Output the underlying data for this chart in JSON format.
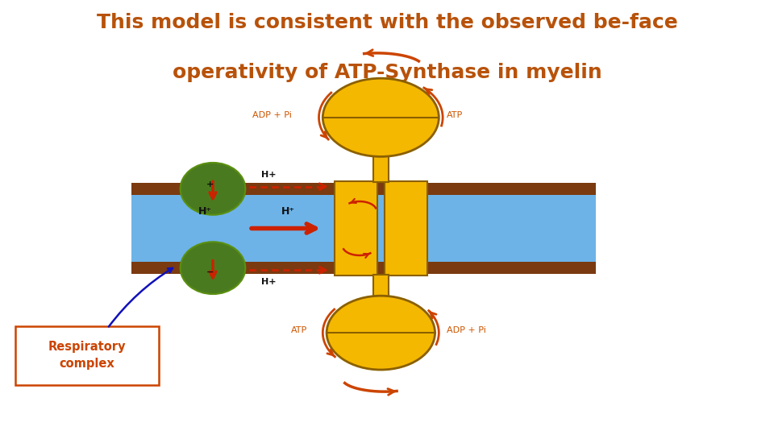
{
  "title_line1": "This model is consistent with the observed be-face",
  "title_line2": "operativity of ATP-Synthase in myelin",
  "title_color": "#B8520A",
  "title_fontsize": 18,
  "bg_color": "#FFFFFF",
  "membrane_color": "#6DB3E8",
  "membrane_border_color": "#7B3A10",
  "atp_synthase_color": "#F5B800",
  "atp_edge_color": "#8B6000",
  "green_complex_color": "#4A7A20",
  "green_edge_color": "#5A9010",
  "red_arrow_color": "#CC2200",
  "orange_arrow_color": "#CC4400",
  "blue_arrow_color": "#1111BB",
  "text_label_color": "#CC5500",
  "black_text_color": "#111111",
  "label_adppi_top": "ADP + Pi",
  "label_atp_top": "ATP",
  "label_atp_bottom": "ATP",
  "label_adppi_bottom": "ADP + Pi",
  "label_respiratory": "Respiratory\ncomplex",
  "label_hplus": "H+"
}
